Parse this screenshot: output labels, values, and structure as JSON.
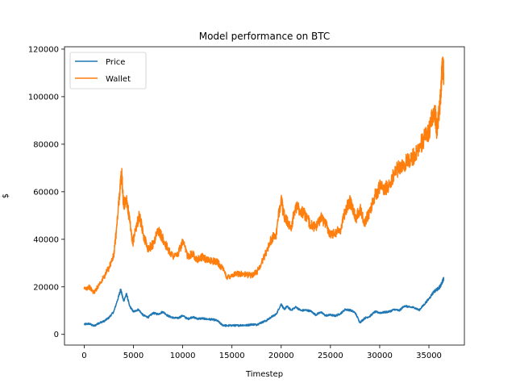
{
  "chart_data": {
    "type": "line",
    "title": "Model performance on BTC",
    "xlabel": "Timestep",
    "ylabel": "$",
    "xlim": [
      -2000,
      38600
    ],
    "ylim": [
      -4500,
      121000
    ],
    "xticks": [
      0,
      5000,
      10000,
      15000,
      20000,
      25000,
      30000,
      35000
    ],
    "yticks": [
      0,
      20000,
      40000,
      60000,
      80000,
      100000,
      120000
    ],
    "grid": false,
    "legend": "top-left",
    "series": [
      {
        "name": "Price",
        "color": "#1f77b4",
        "x": [
          0,
          500,
          1000,
          1500,
          2000,
          2500,
          3000,
          3500,
          3700,
          4000,
          4300,
          4600,
          5000,
          5500,
          6000,
          6500,
          7000,
          7500,
          8000,
          8500,
          9000,
          9500,
          10000,
          10500,
          11000,
          11500,
          12000,
          12500,
          13000,
          13500,
          14000,
          14500,
          15000,
          15500,
          16000,
          16500,
          17000,
          17500,
          18000,
          18500,
          19000,
          19500,
          20000,
          20300,
          20600,
          21000,
          21500,
          22000,
          22500,
          23000,
          23500,
          24000,
          24500,
          25000,
          25500,
          26000,
          26500,
          27000,
          27500,
          28000,
          28500,
          29000,
          29500,
          30000,
          30500,
          31000,
          31500,
          32000,
          32500,
          33000,
          33500,
          34000,
          34500,
          35000,
          35500,
          36000,
          36200,
          36400,
          36500
        ],
        "y": [
          4200,
          4500,
          3500,
          4800,
          5500,
          7000,
          9500,
          16000,
          19000,
          14000,
          17000,
          12000,
          9500,
          10500,
          8000,
          7200,
          9000,
          8500,
          9500,
          7800,
          7000,
          6800,
          7900,
          6500,
          7300,
          6600,
          6700,
          6400,
          6300,
          5800,
          4000,
          3600,
          3800,
          3700,
          3900,
          3800,
          4200,
          4100,
          5000,
          5800,
          7300,
          8500,
          12800,
          10500,
          11800,
          10200,
          11500,
          10000,
          10200,
          9800,
          8200,
          9400,
          7900,
          8200,
          7800,
          8700,
          10500,
          10200,
          9200,
          5000,
          6900,
          7600,
          9500,
          9100,
          9300,
          9600,
          10500,
          10000,
          12000,
          11500,
          11300,
          10200,
          12500,
          15000,
          18000,
          19500,
          20500,
          22500,
          23500
        ]
      },
      {
        "name": "Wallet",
        "color": "#ff7f0e",
        "x": [
          0,
          500,
          1000,
          1500,
          2000,
          2500,
          3000,
          3300,
          3600,
          3800,
          4000,
          4300,
          4600,
          4900,
          5200,
          5600,
          6000,
          6500,
          7000,
          7500,
          8000,
          8500,
          9000,
          9500,
          10000,
          10500,
          11000,
          11500,
          12000,
          12500,
          13000,
          13500,
          14000,
          14500,
          15000,
          15500,
          16000,
          16500,
          17000,
          17500,
          18000,
          18500,
          19000,
          19500,
          20000,
          20200,
          20500,
          21000,
          21500,
          22000,
          22500,
          23000,
          23500,
          24000,
          24500,
          25000,
          25500,
          26000,
          26500,
          27000,
          27300,
          27600,
          28000,
          28500,
          29000,
          29500,
          30000,
          30500,
          31000,
          31500,
          32000,
          32500,
          33000,
          33500,
          34000,
          34500,
          35000,
          35300,
          35600,
          35800,
          36000,
          36200,
          36350,
          36500
        ],
        "y": [
          19000,
          20000,
          17500,
          21000,
          24000,
          28000,
          33000,
          45000,
          60000,
          68000,
          54000,
          57000,
          48000,
          38000,
          44000,
          50000,
          42000,
          36000,
          38000,
          44000,
          40000,
          36000,
          33000,
          33500,
          39000,
          33000,
          34000,
          31500,
          32500,
          31000,
          31000,
          30500,
          28000,
          24000,
          25000,
          25500,
          25500,
          25000,
          25000,
          26000,
          30000,
          35000,
          40000,
          42000,
          58000,
          51000,
          48000,
          45000,
          54000,
          52000,
          50000,
          46000,
          45000,
          49000,
          47000,
          42000,
          43000,
          44000,
          52000,
          56000,
          52000,
          49000,
          53000,
          47000,
          52000,
          58000,
          62000,
          61000,
          63000,
          68000,
          70000,
          72000,
          73000,
          75000,
          79000,
          82000,
          85000,
          92000,
          94000,
          86000,
          92000,
          100000,
          114000,
          110000
        ]
      }
    ]
  }
}
